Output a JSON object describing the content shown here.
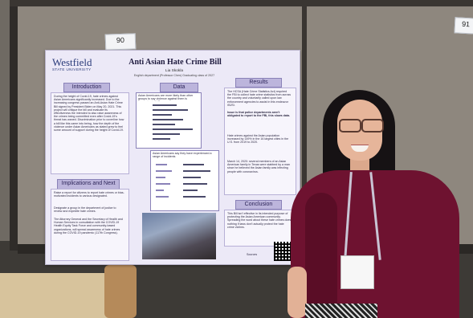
{
  "scene": {
    "tags": {
      "left": "90",
      "right": "91"
    }
  },
  "poster": {
    "logo": {
      "name": "Westfield",
      "sub": "STATE UNIVERSITY"
    },
    "title": "Anti Asian Hate Crime Bill",
    "author": "Lia Skokla",
    "affiliation": "English department (Professor Chen) Graduating class of 2027",
    "sections": {
      "introduction": "Introduction",
      "data": "Data",
      "results": "Results",
      "implications": "Implications and Next Steps",
      "conclusion": "Conclusion"
    },
    "intro_text": "During the height of Covid-19, hate crimes against Asian Americans significantly increased. Due to the increasing congress passed an Anti-Asian Hate Crime Bill signed by President Biden on May 20, 2021. This project will critique the bill and evaluate its effectiveness the intended to also raise awareness of the crimes being committed even after Covid-19's threat has waned. Discrimination prior to coverline how a bill like this came into being, how the depth of the violence under Asian Americans as stated grew to feel some amount of support during the height of Covid-19.",
    "results_text_1": "The HCSA (Hate Crime Statistics Act) required the FBI to collect hate crime statistics from across the country and voluntarily called upon law enforcement agencies to assist in this endeavor (BJS).",
    "results_text_2": "Issue is that police departments aren't obligated to report to the FBI, this slows data.",
    "results_text_3": "Hate crimes against the Asian population increased by 149% in the 16 largest cities in the U.S. from 2019 to 2020.",
    "results_text_4": "March 14, 2020: several members of an Asian American family in Texas were stabbed by a man since he believed the Asian family was infecting people with coronavirus.",
    "impl_text_1": "Raise a report for citizens to report hate crimes or bias-motivated incidents to various designated.",
    "impl_text_2": "Designate a group in the department of justice to review and expedite hate crimes.",
    "impl_text_3": "The Attorney General and the Secretary of Health and Human Services in consultation with the COVID-19 Health Equity Task Force and community-based organizations, will spread awareness of hate crimes during the COVID-19 pandemic (117th Congress).",
    "conclusion_text": "This Bill isn't effective in its intended purpose of protecting the Asian American community. Spreading the word about these hate crimes does nothing if laws don't actually protect the hate crime victims.",
    "chart1_title": "Asian Americans are more likely than other groups to say violence against them is increasing in U.S.",
    "chart2_title": "Asian Americans say they have experienced a range of incidents",
    "footer": "Sources"
  },
  "colors": {
    "poster_bg": "#ece9f7",
    "section_head": "#bcb5dc",
    "logo": "#2a3b7a",
    "dress": "#6e1230"
  }
}
